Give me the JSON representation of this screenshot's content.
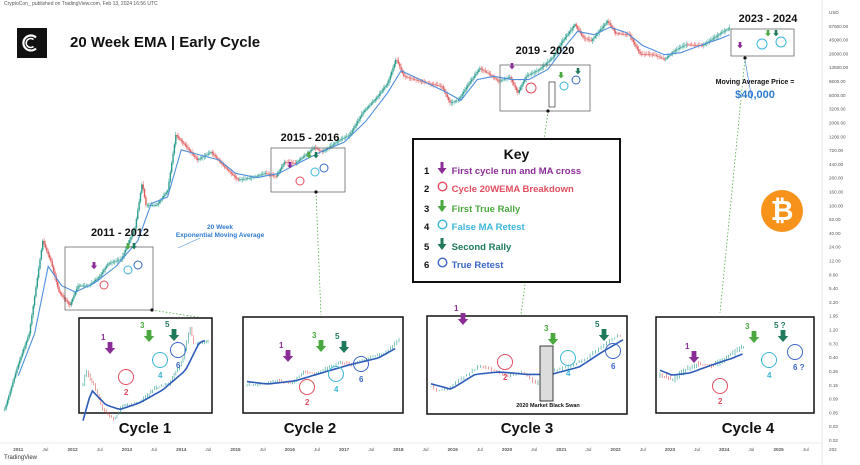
{
  "header": {
    "publisher_line": "CryptoCon_ published on TradingView.com, Feb 13, 2024 16:56 UTC",
    "title": "20 Week EMA | Early Cycle",
    "tradingview_logo": "TradingView"
  },
  "annotations": {
    "ema_label_line1": "20 Week",
    "ema_label_line2": "Exponential Moving Average",
    "ma_price_label": "Moving Average Price =",
    "ma_price_value": "$40,000",
    "black_swan": "2020 Market Black Swan"
  },
  "icons": {
    "brand_logo": "cryptocon-logo",
    "bitcoin": "bitcoin-logo"
  },
  "colors": {
    "price": "#e3c83a",
    "ema": "#4f8fdc",
    "purple": "#8b2d96",
    "red": "#e04e5f",
    "green": "#4aa83f",
    "cyan": "#3bb6d8",
    "dark_green": "#1f7a5a",
    "blue": "#3966c7",
    "candle_up": "#2a9d8f",
    "candle_down": "#e05a5a",
    "ma_highlight": "#2e7bcf"
  },
  "key": {
    "title": "Key",
    "items": [
      {
        "number": "1",
        "symbol": "arrow",
        "color": "#8b2d96",
        "label": "First cycle run and MA cross"
      },
      {
        "number": "2",
        "symbol": "circle",
        "color": "#e04e5f",
        "label": "Cycle 20WEMA Breakdown"
      },
      {
        "number": "3",
        "symbol": "arrow",
        "color": "#4aa83f",
        "label": "First True Rally"
      },
      {
        "number": "4",
        "symbol": "circle",
        "color": "#3bb6d8",
        "label": "False MA Retest"
      },
      {
        "number": "5",
        "symbol": "arrow",
        "color": "#1f7a5a",
        "label": "Second Rally"
      },
      {
        "number": "6",
        "symbol": "circle",
        "color": "#3966c7",
        "label": "True Retest"
      }
    ]
  },
  "periods": [
    {
      "label": "2011 - 2012"
    },
    {
      "label": "2015 - 2016"
    },
    {
      "label": "2019 - 2020"
    },
    {
      "label": "2023 - 2024"
    }
  ],
  "cycles": [
    {
      "label": "Cycle 1",
      "markers": [
        "1",
        "2",
        "3",
        "4",
        "5",
        "6"
      ]
    },
    {
      "label": "Cycle 2",
      "markers": [
        "1",
        "2",
        "3",
        "4",
        "5",
        "6"
      ]
    },
    {
      "label": "Cycle 3",
      "markers": [
        "1",
        "2",
        "3",
        "4",
        "5",
        "6"
      ]
    },
    {
      "label": "Cycle 4",
      "markers": [
        "1",
        "2",
        "3",
        "4",
        "5 ?",
        "6 ?"
      ]
    }
  ],
  "chart_data": {
    "type": "line",
    "scale": "log",
    "xlabel": "",
    "ylabel": "",
    "y_axis_ticks": [
      "USD",
      "87600.00",
      "45000.00",
      "26000.00",
      "13500.00",
      "8600.00",
      "5000.00",
      "3200.00",
      "2000.00",
      "1200.00",
      "720.00",
      "440.00",
      "260.00",
      "160.00",
      "100.00",
      "62.00",
      "40.00",
      "24.00",
      "12.00",
      "8.80",
      "5.40",
      "3.20",
      "1.95",
      "1.20",
      "0.70",
      "0.40",
      "0.26",
      "0.15",
      "0.09",
      "0.05",
      "0.03",
      "0.02"
    ],
    "x_axis_ticks": [
      "2011",
      "Jul",
      "2012",
      "Jul",
      "2013",
      "Jul",
      "2014",
      "Jul",
      "2015",
      "Jul",
      "2016",
      "Jul",
      "2017",
      "Jul",
      "2018",
      "Jul",
      "2019",
      "Jul",
      "2020",
      "Jul",
      "2021",
      "Jul",
      "2022",
      "Jul",
      "2023",
      "Jul",
      "2024",
      "Jul",
      "2025",
      "Jul",
      "202"
    ],
    "x_range": [
      2010.7,
      2025.8
    ],
    "y_range": [
      0.02,
      90000
    ],
    "series": [
      {
        "name": "",
        "role": "price",
        "points": [
          [
            2010.75,
            0.06
          ],
          [
            2011.0,
            0.3
          ],
          [
            2011.2,
            0.9
          ],
          [
            2011.45,
            25
          ],
          [
            2011.6,
            12
          ],
          [
            2011.75,
            4
          ],
          [
            2011.95,
            2.5
          ],
          [
            2012.1,
            5
          ],
          [
            2012.3,
            5
          ],
          [
            2012.5,
            7
          ],
          [
            2012.65,
            11
          ],
          [
            2012.9,
            13
          ],
          [
            2013.15,
            40
          ],
          [
            2013.28,
            200
          ],
          [
            2013.35,
            90
          ],
          [
            2013.55,
            90
          ],
          [
            2013.75,
            150
          ],
          [
            2013.9,
            1100
          ],
          [
            2014.05,
            800
          ],
          [
            2014.3,
            450
          ],
          [
            2014.55,
            600
          ],
          [
            2014.8,
            350
          ],
          [
            2015.05,
            220
          ],
          [
            2015.3,
            240
          ],
          [
            2015.55,
            280
          ],
          [
            2015.75,
            250
          ],
          [
            2015.9,
            420
          ],
          [
            2016.1,
            400
          ],
          [
            2016.45,
            700
          ],
          [
            2016.6,
            600
          ],
          [
            2016.9,
            900
          ],
          [
            2017.1,
            1100
          ],
          [
            2017.35,
            2500
          ],
          [
            2017.6,
            4200
          ],
          [
            2017.8,
            7000
          ],
          [
            2017.96,
            17000
          ],
          [
            2018.1,
            9000
          ],
          [
            2018.3,
            8000
          ],
          [
            2018.55,
            7000
          ],
          [
            2018.8,
            6300
          ],
          [
            2018.95,
            3500
          ],
          [
            2019.1,
            3800
          ],
          [
            2019.3,
            7000
          ],
          [
            2019.5,
            12000
          ],
          [
            2019.65,
            10000
          ],
          [
            2019.85,
            7500
          ],
          [
            2020.05,
            8800
          ],
          [
            2020.2,
            5000
          ],
          [
            2020.35,
            9000
          ],
          [
            2020.6,
            11500
          ],
          [
            2020.85,
            18000
          ],
          [
            2021.0,
            30000
          ],
          [
            2021.25,
            58000
          ],
          [
            2021.4,
            36000
          ],
          [
            2021.55,
            32000
          ],
          [
            2021.85,
            65000
          ],
          [
            2022.0,
            42000
          ],
          [
            2022.25,
            40000
          ],
          [
            2022.45,
            20000
          ],
          [
            2022.7,
            19500
          ],
          [
            2022.9,
            16500
          ],
          [
            2023.1,
            23000
          ],
          [
            2023.3,
            28000
          ],
          [
            2023.6,
            27000
          ],
          [
            2023.8,
            35000
          ],
          [
            2023.95,
            43000
          ],
          [
            2024.1,
            51000
          ]
        ]
      },
      {
        "name": "20 Week Exponential Moving Average",
        "role": "ema",
        "points": [
          [
            2011.0,
            0.2
          ],
          [
            2011.3,
            0.9
          ],
          [
            2011.55,
            10
          ],
          [
            2011.8,
            5
          ],
          [
            2012.05,
            4
          ],
          [
            2012.4,
            5.5
          ],
          [
            2012.8,
            10
          ],
          [
            2013.2,
            25
          ],
          [
            2013.45,
            95
          ],
          [
            2013.75,
            120
          ],
          [
            2014.0,
            650
          ],
          [
            2014.3,
            550
          ],
          [
            2014.7,
            450
          ],
          [
            2015.0,
            280
          ],
          [
            2015.4,
            240
          ],
          [
            2015.8,
            280
          ],
          [
            2016.1,
            380
          ],
          [
            2016.6,
            620
          ],
          [
            2017.0,
            850
          ],
          [
            2017.4,
            1800
          ],
          [
            2017.8,
            5000
          ],
          [
            2018.05,
            11000
          ],
          [
            2018.4,
            8000
          ],
          [
            2018.9,
            5000
          ],
          [
            2019.15,
            3800
          ],
          [
            2019.45,
            8000
          ],
          [
            2019.75,
            9000
          ],
          [
            2020.1,
            8000
          ],
          [
            2020.4,
            8000
          ],
          [
            2020.75,
            11500
          ],
          [
            2021.05,
            25000
          ],
          [
            2021.3,
            45000
          ],
          [
            2021.6,
            40000
          ],
          [
            2021.9,
            52000
          ],
          [
            2022.2,
            43000
          ],
          [
            2022.5,
            27000
          ],
          [
            2022.9,
            19500
          ],
          [
            2023.2,
            21000
          ],
          [
            2023.6,
            28000
          ],
          [
            2023.9,
            34000
          ],
          [
            2024.1,
            40000
          ]
        ]
      }
    ]
  }
}
